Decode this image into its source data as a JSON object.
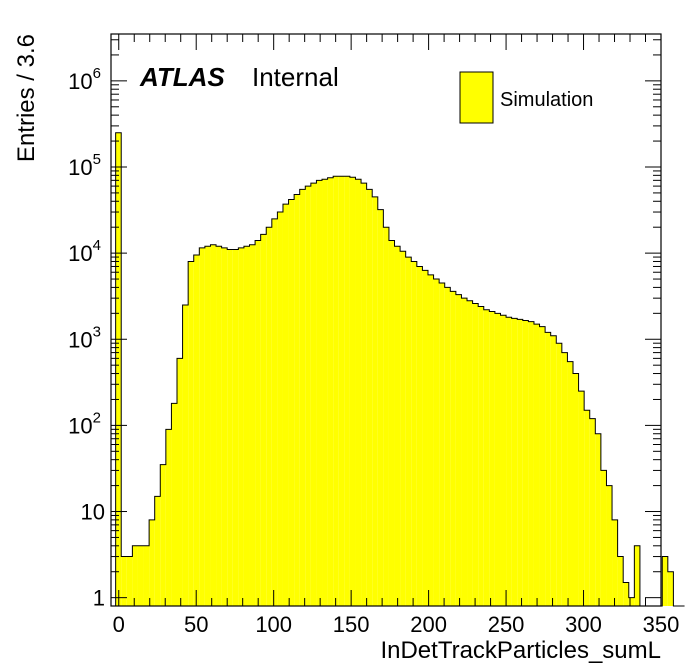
{
  "chart_data": {
    "type": "bar",
    "style": "histogram-step-filled",
    "title": "",
    "xlabel": "InDetTrackParticles_sumL",
    "ylabel": "Entries / 3.6",
    "xlim": [
      -5,
      350
    ],
    "ylim": [
      0.8,
      3500000
    ],
    "y_scale": "log",
    "bin_width": 3.6,
    "x_ticks": [
      0,
      50,
      100,
      150,
      200,
      250,
      300,
      350
    ],
    "x_tick_labels": [
      "0",
      "50",
      "100",
      "150",
      "200",
      "250",
      "300",
      "350"
    ],
    "y_ticks": [
      1,
      10,
      100,
      1000,
      10000,
      100000,
      1000000
    ],
    "y_tick_labels": [
      {
        "base": "1",
        "exp": ""
      },
      {
        "base": "10",
        "exp": ""
      },
      {
        "base": "10",
        "exp": "2"
      },
      {
        "base": "10",
        "exp": "3"
      },
      {
        "base": "10",
        "exp": "4"
      },
      {
        "base": "10",
        "exp": "5"
      },
      {
        "base": "10",
        "exp": "6"
      }
    ],
    "grid": false,
    "legend_position": "top-right",
    "fill_color": "#ffff00",
    "line_color": "#000000",
    "series": [
      {
        "name": "Simulation",
        "bin_edges_start": -2,
        "values": [
          250000,
          3,
          3,
          4,
          4,
          4,
          8,
          15,
          35,
          90,
          180,
          600,
          2500,
          8000,
          9500,
          11500,
          12000,
          12500,
          12000,
          11500,
          11000,
          11000,
          11500,
          12000,
          12500,
          14000,
          16500,
          20000,
          25000,
          30000,
          37000,
          42000,
          48000,
          55000,
          60000,
          65000,
          70000,
          72000,
          75000,
          78000,
          78000,
          78000,
          76000,
          72000,
          65000,
          55000,
          45000,
          32000,
          20000,
          14000,
          12000,
          10500,
          9000,
          8000,
          7000,
          6300,
          5600,
          5000,
          4500,
          4000,
          3600,
          3300,
          3000,
          2800,
          2600,
          2400,
          2200,
          2100,
          2000,
          1900,
          1800,
          1750,
          1700,
          1650,
          1600,
          1500,
          1400,
          1200,
          1100,
          900,
          700,
          550,
          400,
          250,
          150,
          120,
          80,
          30,
          20,
          8,
          3,
          1.5,
          1,
          4,
          0,
          0,
          0,
          0,
          3,
          2,
          0,
          0
        ]
      }
    ],
    "annotations": [
      {
        "text": "ATLAS",
        "style": "bold-italic"
      },
      {
        "text": "Internal",
        "style": "normal"
      }
    ]
  }
}
